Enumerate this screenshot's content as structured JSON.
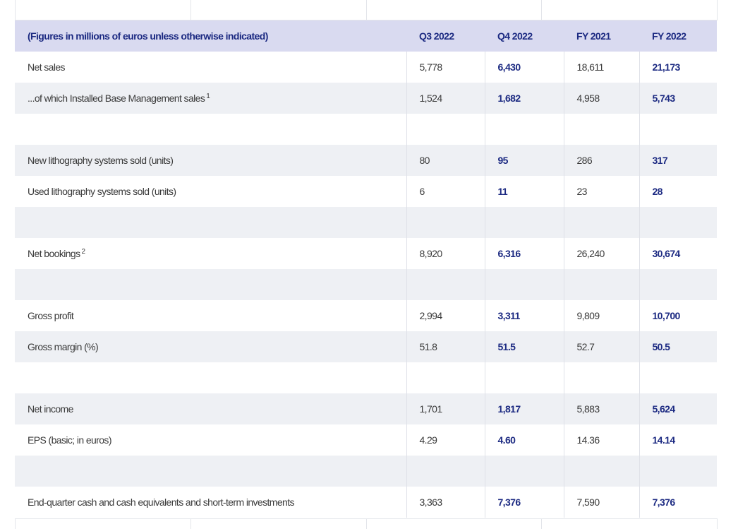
{
  "table": {
    "header": [
      "(Figures in millions of euros unless otherwise indicated)",
      "Q3 2022",
      "Q4 2022",
      "FY 2021",
      "FY 2022"
    ],
    "sections": [
      [
        {
          "label": "Net sales",
          "values": [
            "5,778",
            "6,430",
            "18,611",
            "21,173"
          ]
        },
        {
          "label": "...of which Installed Base Management sales",
          "note": "1",
          "values": [
            "1,524",
            "1,682",
            "4,958",
            "5,743"
          ]
        }
      ],
      [
        {
          "label": "New lithography systems sold (units)",
          "values": [
            "80",
            "95",
            "286",
            "317"
          ]
        },
        {
          "label": "Used lithography systems sold (units)",
          "values": [
            "6",
            "11",
            "23",
            "28"
          ]
        }
      ],
      [
        {
          "label": "Net bookings",
          "note": "2",
          "values": [
            "8,920",
            "6,316",
            "26,240",
            "30,674"
          ]
        }
      ],
      [
        {
          "label": "Gross profit",
          "values": [
            "2,994",
            "3,311",
            "9,809",
            "10,700"
          ]
        },
        {
          "label": "Gross margin (%)",
          "values": [
            "51.8",
            "51.5",
            "52.7",
            "50.5"
          ]
        }
      ],
      [
        {
          "label": "Net income",
          "values": [
            "1,701",
            "1,817",
            "5,883",
            "5,624"
          ]
        },
        {
          "label": "EPS (basic; in euros)",
          "values": [
            "4.29",
            "4.60",
            "14.36",
            "14.14"
          ]
        }
      ],
      [
        {
          "label": "End-quarter cash and cash equivalents and short-term investments",
          "values": [
            "3,363",
            "7,376",
            "7,590",
            "7,376"
          ]
        }
      ]
    ]
  }
}
